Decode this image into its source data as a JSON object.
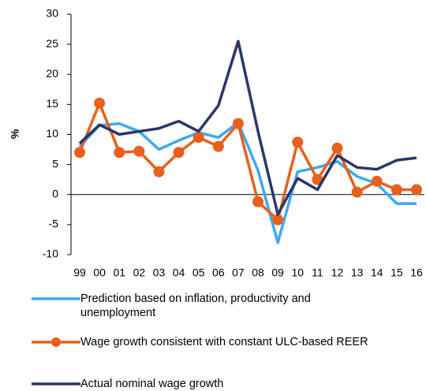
{
  "chart_data": {
    "type": "line",
    "y_label": "%",
    "categories": [
      "99",
      "00",
      "01",
      "02",
      "03",
      "04",
      "05",
      "06",
      "07",
      "08",
      "09",
      "10",
      "11",
      "12",
      "13",
      "14",
      "15",
      "16"
    ],
    "ylim": [
      -10,
      30
    ],
    "yticks": [
      -10,
      -5,
      0,
      5,
      10,
      15,
      20,
      25,
      30
    ],
    "series": [
      {
        "name": "Prediction based on inflation, productivity and unemployment",
        "color": "#3ea8f5",
        "marker": false,
        "values": [
          8,
          11.5,
          11.8,
          10.5,
          7.5,
          9,
          10.3,
          9.5,
          12,
          4,
          -8,
          3.8,
          4.5,
          5.5,
          3,
          1.8,
          -1.5,
          -1.5
        ]
      },
      {
        "name": "Wage growth consistent with constant ULC-based REER",
        "color": "#e8601c",
        "marker": true,
        "values": [
          7,
          15.2,
          7,
          7.2,
          3.8,
          7,
          9.5,
          8,
          11.8,
          -1.2,
          -4.2,
          8.7,
          2.5,
          7.7,
          0.4,
          2.2,
          0.8,
          0.8
        ]
      },
      {
        "name": "Actual nominal wage growth",
        "color": "#2b3668",
        "marker": false,
        "values": [
          8.5,
          11.6,
          10,
          10.5,
          11,
          12.2,
          10.5,
          14.8,
          25.5,
          10.5,
          -3.3,
          2.7,
          0.8,
          6.5,
          4.5,
          4.2,
          5.7,
          6.1
        ]
      }
    ]
  }
}
